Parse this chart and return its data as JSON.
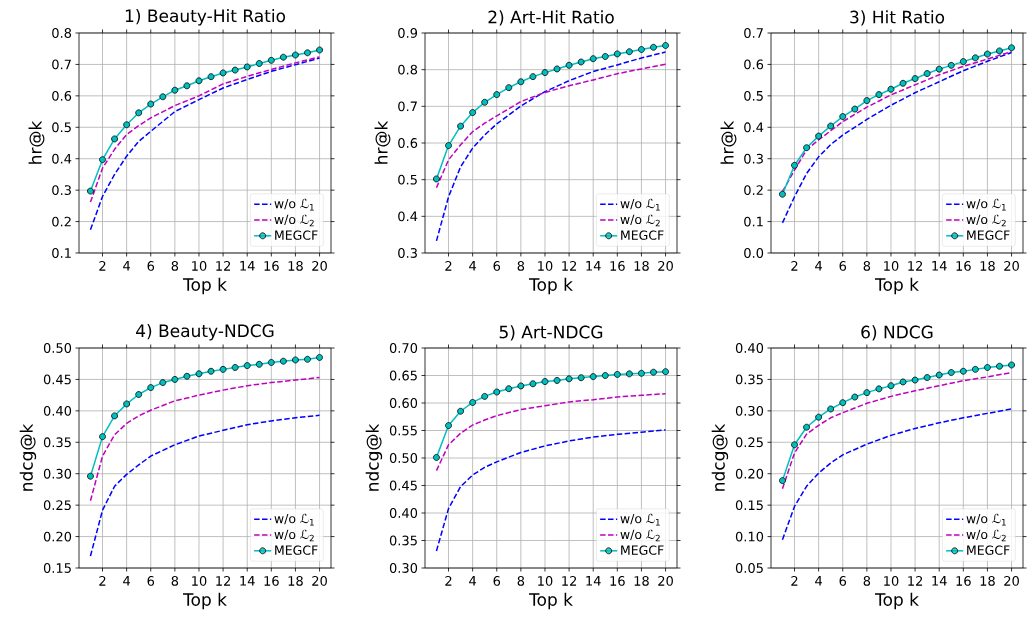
{
  "chart_data": [
    {
      "type": "line",
      "title": "1) Beauty-Hit Ratio",
      "xlabel": "Top k",
      "ylabel": "hr@k",
      "xlim": [
        0.05,
        20.95
      ],
      "xticks": [
        2,
        4,
        6,
        8,
        10,
        12,
        14,
        16,
        18,
        20
      ],
      "ylim": [
        0.1,
        0.8
      ],
      "yticks": [
        0.1,
        0.2,
        0.3,
        0.4,
        0.5,
        0.6,
        0.7,
        0.8
      ],
      "grid": true,
      "legend": "bottom right",
      "series": [
        {
          "name": "w/o ℒ$_{1}$",
          "color": "#0000ff",
          "line_style": "dashed",
          "marker": "none",
          "x": [
            1,
            2,
            3,
            4,
            5,
            6,
            8,
            10,
            12,
            14,
            16,
            18,
            20
          ],
          "values": [
            0.174,
            0.28,
            0.35,
            0.408,
            0.455,
            0.487,
            0.55,
            0.588,
            0.625,
            0.652,
            0.678,
            0.699,
            0.72
          ]
        },
        {
          "name": "w/o ℒ$_{2}$",
          "color": "#bf00bf",
          "line_style": "dashed",
          "marker": "none",
          "x": [
            1,
            2,
            3,
            4,
            5,
            6,
            8,
            10,
            12,
            14,
            16,
            18,
            20
          ],
          "values": [
            0.262,
            0.37,
            0.43,
            0.477,
            0.505,
            0.53,
            0.569,
            0.6,
            0.638,
            0.662,
            0.684,
            0.705,
            0.724
          ]
        },
        {
          "name": "MEGCF",
          "color": "#00bfbf",
          "line_style": "solid",
          "marker": "circle",
          "x": [
            1,
            2,
            3,
            4,
            5,
            6,
            7,
            8,
            9,
            10,
            11,
            12,
            13,
            14,
            15,
            16,
            17,
            18,
            19,
            20
          ],
          "values": [
            0.297,
            0.397,
            0.463,
            0.508,
            0.546,
            0.574,
            0.597,
            0.618,
            0.632,
            0.648,
            0.661,
            0.673,
            0.682,
            0.692,
            0.703,
            0.713,
            0.723,
            0.73,
            0.737,
            0.746
          ]
        }
      ]
    },
    {
      "type": "line",
      "title": "2) Art-Hit Ratio",
      "xlabel": "Top k",
      "ylabel": "hr@k",
      "xlim": [
        0.05,
        20.95
      ],
      "xticks": [
        2,
        4,
        6,
        8,
        10,
        12,
        14,
        16,
        18,
        20
      ],
      "ylim": [
        0.3,
        0.9
      ],
      "yticks": [
        0.3,
        0.4,
        0.5,
        0.6,
        0.7,
        0.8,
        0.9
      ],
      "grid": true,
      "legend": "bottom right",
      "series": [
        {
          "name": "w/o ℒ$_{1}$",
          "color": "#0000ff",
          "line_style": "dashed",
          "marker": "none",
          "x": [
            1,
            2,
            3,
            4,
            5,
            6,
            8,
            10,
            12,
            14,
            16,
            18,
            20
          ],
          "values": [
            0.333,
            0.453,
            0.535,
            0.586,
            0.622,
            0.652,
            0.701,
            0.74,
            0.77,
            0.795,
            0.813,
            0.832,
            0.848
          ]
        },
        {
          "name": "w/o ℒ$_{2}$",
          "color": "#bf00bf",
          "line_style": "dashed",
          "marker": "none",
          "x": [
            1,
            2,
            3,
            4,
            5,
            6,
            8,
            10,
            12,
            14,
            16,
            18,
            20
          ],
          "values": [
            0.478,
            0.554,
            0.595,
            0.631,
            0.654,
            0.674,
            0.713,
            0.738,
            0.756,
            0.772,
            0.789,
            0.802,
            0.815
          ]
        },
        {
          "name": "MEGCF",
          "color": "#00bfbf",
          "line_style": "solid",
          "marker": "circle",
          "x": [
            1,
            2,
            3,
            4,
            5,
            6,
            7,
            8,
            9,
            10,
            11,
            12,
            13,
            14,
            15,
            16,
            17,
            18,
            19,
            20
          ],
          "values": [
            0.502,
            0.593,
            0.646,
            0.683,
            0.711,
            0.732,
            0.751,
            0.767,
            0.781,
            0.792,
            0.802,
            0.812,
            0.821,
            0.83,
            0.836,
            0.843,
            0.849,
            0.855,
            0.861,
            0.866
          ]
        }
      ]
    },
    {
      "type": "line",
      "title": "3) Hit Ratio",
      "xlabel": "Top k",
      "ylabel": "hr@k",
      "xlim": [
        0.05,
        20.95
      ],
      "xticks": [
        2,
        4,
        6,
        8,
        10,
        12,
        14,
        16,
        18,
        20
      ],
      "ylim": [
        0,
        0.7
      ],
      "yticks": [
        {
          "value": 0,
          "label": "0.0"
        },
        0.1,
        0.2,
        0.3,
        0.4,
        0.5,
        0.6,
        0.7
      ],
      "grid": true,
      "legend": "bottom right",
      "series": [
        {
          "name": "w/o ℒ$_{1}$",
          "color": "#0000ff",
          "line_style": "dashed",
          "marker": "none",
          "x": [
            1,
            2,
            3,
            4,
            5,
            6,
            8,
            10,
            12,
            14,
            16,
            18,
            20
          ],
          "values": [
            0.096,
            0.179,
            0.253,
            0.306,
            0.345,
            0.375,
            0.425,
            0.47,
            0.51,
            0.545,
            0.58,
            0.61,
            0.638
          ]
        },
        {
          "name": "w/o ℒ$_{2}$",
          "color": "#bf00bf",
          "line_style": "dashed",
          "marker": "none",
          "x": [
            1,
            2,
            3,
            4,
            5,
            6,
            8,
            10,
            12,
            14,
            16,
            18,
            20
          ],
          "values": [
            0.195,
            0.264,
            0.328,
            0.36,
            0.389,
            0.418,
            0.464,
            0.503,
            0.535,
            0.567,
            0.594,
            0.617,
            0.641
          ]
        },
        {
          "name": "MEGCF",
          "color": "#00bfbf",
          "line_style": "solid",
          "marker": "circle",
          "x": [
            1,
            2,
            3,
            4,
            5,
            6,
            7,
            8,
            9,
            10,
            11,
            12,
            13,
            14,
            15,
            16,
            17,
            18,
            19,
            20
          ],
          "values": [
            0.187,
            0.279,
            0.335,
            0.372,
            0.404,
            0.434,
            0.458,
            0.485,
            0.504,
            0.521,
            0.54,
            0.555,
            0.571,
            0.585,
            0.597,
            0.609,
            0.621,
            0.633,
            0.643,
            0.653
          ]
        }
      ]
    },
    {
      "type": "line",
      "title": "4) Beauty-NDCG",
      "xlabel": "Top k",
      "ylabel": "ndcg@k",
      "xlim": [
        0.05,
        20.95
      ],
      "xticks": [
        2,
        4,
        6,
        8,
        10,
        12,
        14,
        16,
        18,
        20
      ],
      "ylim": [
        0.15,
        0.5
      ],
      "yticks": [
        0.15,
        {
          "value": 0.2,
          "label": "0.20"
        },
        0.25,
        {
          "value": 0.3,
          "label": "0.30"
        },
        0.35,
        {
          "value": 0.4,
          "label": "0.40"
        },
        0.45,
        {
          "value": 0.5,
          "label": "0.50"
        }
      ],
      "grid": true,
      "legend": "bottom right",
      "series": [
        {
          "name": "w/o ℒ$_{1}$",
          "color": "#0000ff",
          "line_style": "dashed",
          "marker": "none",
          "x": [
            1,
            2,
            3,
            4,
            5,
            6,
            8,
            10,
            12,
            14,
            16,
            18,
            20
          ],
          "values": [
            0.169,
            0.242,
            0.28,
            0.299,
            0.314,
            0.328,
            0.346,
            0.36,
            0.369,
            0.378,
            0.384,
            0.389,
            0.393
          ]
        },
        {
          "name": "w/o ℒ$_{2}$",
          "color": "#bf00bf",
          "line_style": "dashed",
          "marker": "none",
          "x": [
            1,
            2,
            3,
            4,
            5,
            6,
            8,
            10,
            12,
            14,
            16,
            18,
            20
          ],
          "values": [
            0.257,
            0.328,
            0.362,
            0.38,
            0.392,
            0.401,
            0.416,
            0.425,
            0.433,
            0.44,
            0.445,
            0.449,
            0.453
          ]
        },
        {
          "name": "MEGCF",
          "color": "#00bfbf",
          "line_style": "solid",
          "marker": "circle",
          "x": [
            1,
            2,
            3,
            4,
            5,
            6,
            7,
            8,
            9,
            10,
            11,
            12,
            13,
            14,
            15,
            16,
            17,
            18,
            19,
            20
          ],
          "values": [
            0.296,
            0.359,
            0.392,
            0.411,
            0.426,
            0.437,
            0.445,
            0.45,
            0.455,
            0.459,
            0.463,
            0.466,
            0.469,
            0.472,
            0.474,
            0.477,
            0.479,
            0.481,
            0.482,
            0.485
          ]
        }
      ]
    },
    {
      "type": "line",
      "title": "5) Art-NDCG",
      "xlabel": "Top k",
      "ylabel": "ndcg@k",
      "xlim": [
        0.05,
        20.95
      ],
      "xticks": [
        2,
        4,
        6,
        8,
        10,
        12,
        14,
        16,
        18,
        20
      ],
      "ylim": [
        0.3,
        0.7
      ],
      "yticks": [
        {
          "value": 0.3,
          "label": "0.30"
        },
        0.35,
        {
          "value": 0.4,
          "label": "0.40"
        },
        0.45,
        {
          "value": 0.5,
          "label": "0.50"
        },
        0.55,
        {
          "value": 0.6,
          "label": "0.60"
        },
        0.65,
        {
          "value": 0.7,
          "label": "0.70"
        }
      ],
      "grid": true,
      "legend": "bottom right",
      "series": [
        {
          "name": "w/o ℒ$_{1}$",
          "color": "#0000ff",
          "line_style": "dashed",
          "marker": "none",
          "x": [
            1,
            2,
            3,
            4,
            5,
            6,
            8,
            10,
            12,
            14,
            16,
            18,
            20
          ],
          "values": [
            0.331,
            0.408,
            0.448,
            0.469,
            0.483,
            0.493,
            0.51,
            0.522,
            0.531,
            0.538,
            0.543,
            0.547,
            0.551
          ]
        },
        {
          "name": "w/o ℒ$_{2}$",
          "color": "#bf00bf",
          "line_style": "dashed",
          "marker": "none",
          "x": [
            1,
            2,
            3,
            4,
            5,
            6,
            8,
            10,
            12,
            14,
            16,
            18,
            20
          ],
          "values": [
            0.477,
            0.524,
            0.545,
            0.56,
            0.569,
            0.577,
            0.588,
            0.595,
            0.602,
            0.606,
            0.611,
            0.614,
            0.617
          ]
        },
        {
          "name": "MEGCF",
          "color": "#00bfbf",
          "line_style": "solid",
          "marker": "circle",
          "x": [
            1,
            2,
            3,
            4,
            5,
            6,
            7,
            8,
            9,
            10,
            11,
            12,
            13,
            14,
            15,
            16,
            17,
            18,
            19,
            20
          ],
          "values": [
            0.501,
            0.559,
            0.585,
            0.601,
            0.612,
            0.62,
            0.626,
            0.631,
            0.635,
            0.639,
            0.641,
            0.644,
            0.646,
            0.648,
            0.65,
            0.652,
            0.653,
            0.654,
            0.656,
            0.657
          ]
        }
      ]
    },
    {
      "type": "line",
      "title": "6) NDCG",
      "xlabel": "Top k",
      "ylabel": "ndcg@k",
      "xlim": [
        0.05,
        20.95
      ],
      "xticks": [
        2,
        4,
        6,
        8,
        10,
        12,
        14,
        16,
        18,
        20
      ],
      "ylim": [
        0.05,
        0.4
      ],
      "yticks": [
        0.05,
        {
          "value": 0.1,
          "label": "0.10"
        },
        0.15,
        {
          "value": 0.2,
          "label": "0.20"
        },
        0.25,
        {
          "value": 0.3,
          "label": "0.30"
        },
        0.35,
        {
          "value": 0.4,
          "label": "0.40"
        }
      ],
      "grid": true,
      "legend": "bottom right",
      "series": [
        {
          "name": "w/o ℒ$_{1}$",
          "color": "#0000ff",
          "line_style": "dashed",
          "marker": "none",
          "x": [
            1,
            2,
            3,
            4,
            5,
            6,
            8,
            10,
            12,
            14,
            16,
            18,
            20
          ],
          "values": [
            0.095,
            0.148,
            0.18,
            0.201,
            0.217,
            0.23,
            0.247,
            0.261,
            0.272,
            0.281,
            0.289,
            0.296,
            0.303
          ]
        },
        {
          "name": "w/o ℒ$_{2}$",
          "color": "#bf00bf",
          "line_style": "dashed",
          "marker": "none",
          "x": [
            1,
            2,
            3,
            4,
            5,
            6,
            8,
            10,
            12,
            14,
            16,
            18,
            20
          ],
          "values": [
            0.176,
            0.233,
            0.263,
            0.277,
            0.289,
            0.297,
            0.312,
            0.323,
            0.332,
            0.34,
            0.348,
            0.354,
            0.361
          ]
        },
        {
          "name": "MEGCF",
          "color": "#00bfbf",
          "line_style": "solid",
          "marker": "circle",
          "x": [
            1,
            2,
            3,
            4,
            5,
            6,
            7,
            8,
            9,
            10,
            11,
            12,
            13,
            14,
            15,
            16,
            17,
            18,
            19,
            20
          ],
          "values": [
            0.189,
            0.246,
            0.274,
            0.29,
            0.303,
            0.313,
            0.322,
            0.329,
            0.335,
            0.34,
            0.346,
            0.349,
            0.353,
            0.357,
            0.361,
            0.363,
            0.366,
            0.369,
            0.371,
            0.373
          ]
        }
      ]
    }
  ]
}
